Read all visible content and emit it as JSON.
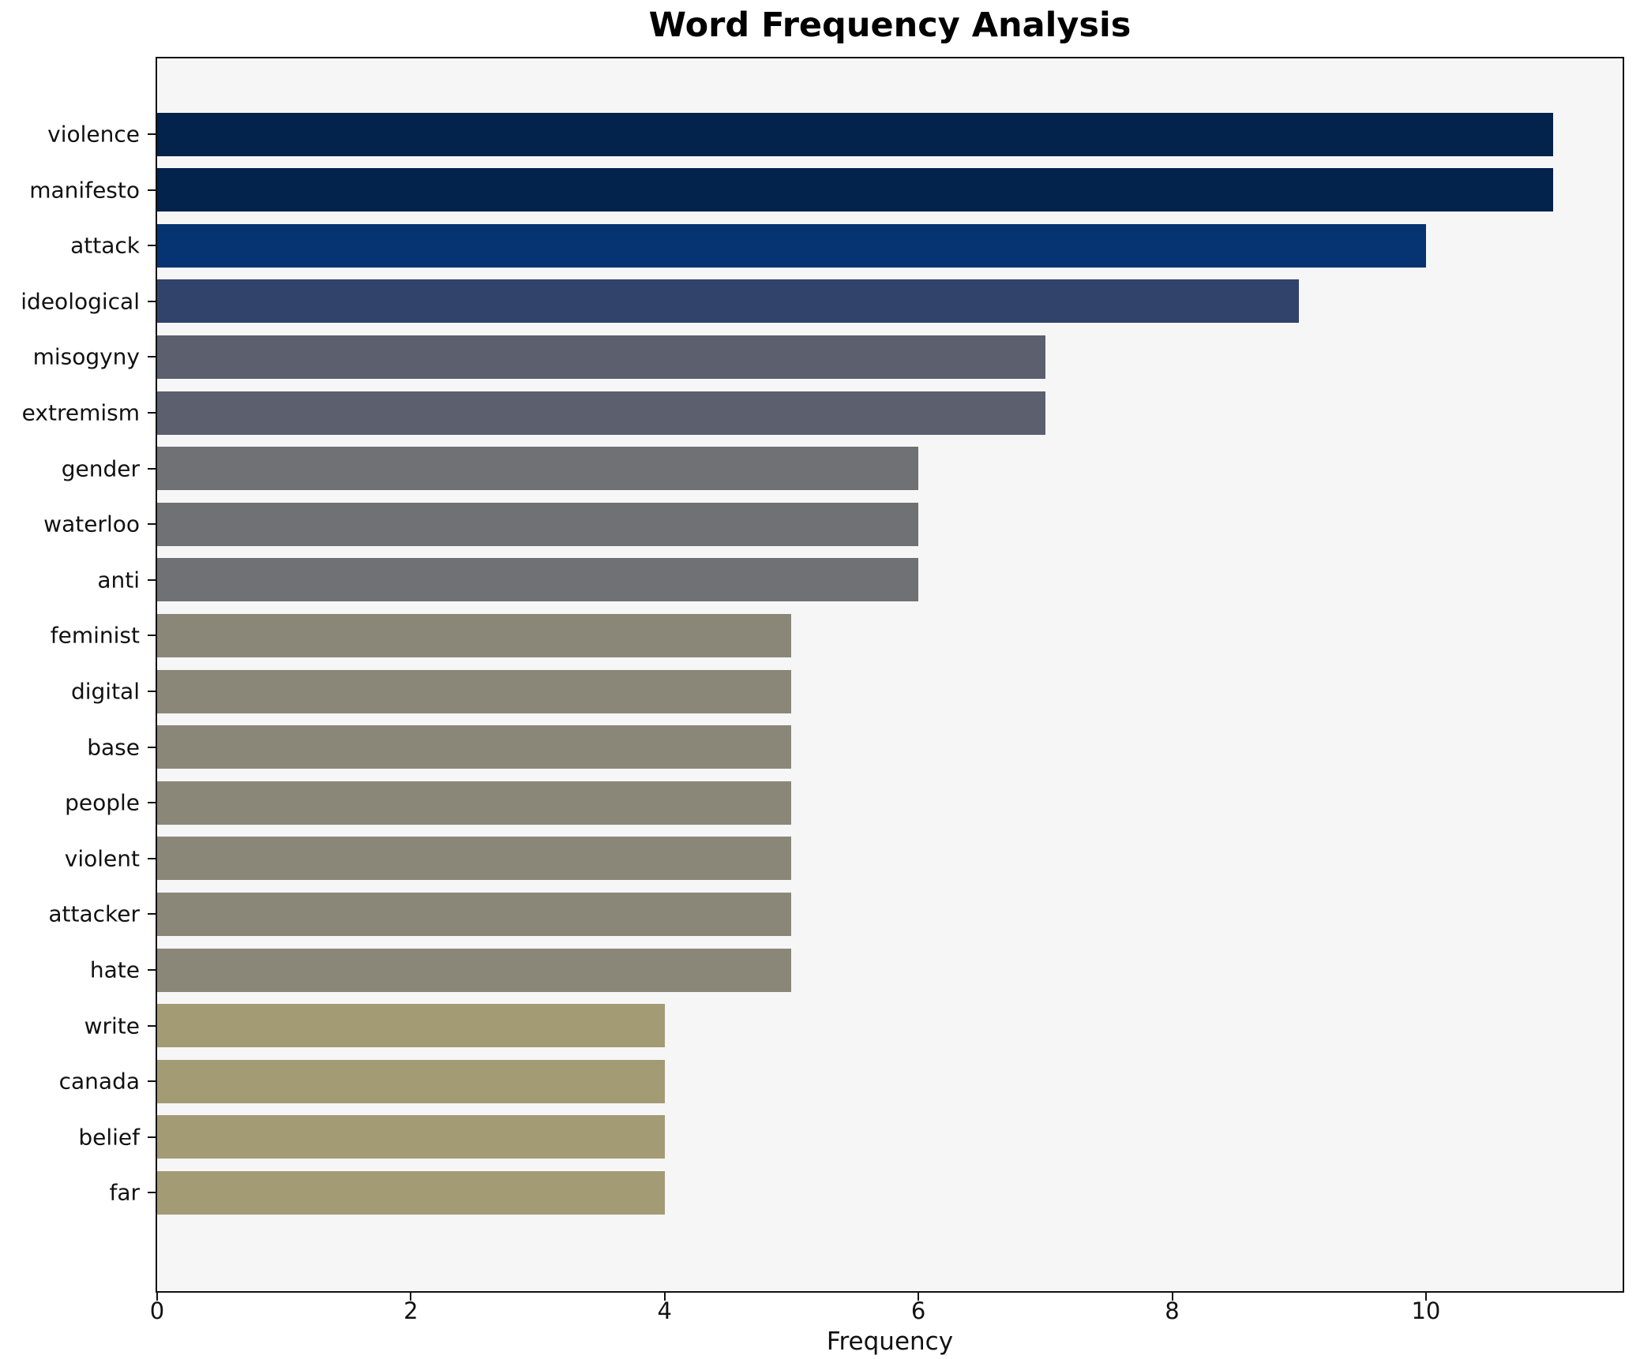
{
  "chart_data": {
    "type": "bar",
    "orientation": "horizontal",
    "title": "Word Frequency Analysis",
    "xlabel": "Frequency",
    "ylabel": "",
    "categories": [
      "violence",
      "manifesto",
      "attack",
      "ideological",
      "misogyny",
      "extremism",
      "gender",
      "waterloo",
      "anti",
      "feminist",
      "digital",
      "base",
      "people",
      "violent",
      "attacker",
      "hate",
      "write",
      "canada",
      "belief",
      "far"
    ],
    "values": [
      11,
      11,
      10,
      9,
      7,
      7,
      6,
      6,
      6,
      5,
      5,
      5,
      5,
      5,
      5,
      5,
      4,
      4,
      4,
      4
    ],
    "bar_colors": [
      "#03224c",
      "#03224c",
      "#063371",
      "#32436b",
      "#5b5f6e",
      "#5b5f6e",
      "#707174",
      "#707174",
      "#707174",
      "#8a8779",
      "#8a8779",
      "#8a8779",
      "#8a8779",
      "#8a8779",
      "#8a8779",
      "#8a8779",
      "#a39b74",
      "#a39b74",
      "#a39b74",
      "#a39b74"
    ],
    "x_ticks": [
      0,
      2,
      4,
      6,
      8,
      10
    ],
    "xlim": [
      0,
      11.55
    ],
    "grid": false,
    "legend_position": "none",
    "colors": {
      "figure_background": "#ffffff",
      "plot_background": "#f6f6f7",
      "spine": "#111111",
      "text": "#111111"
    }
  }
}
